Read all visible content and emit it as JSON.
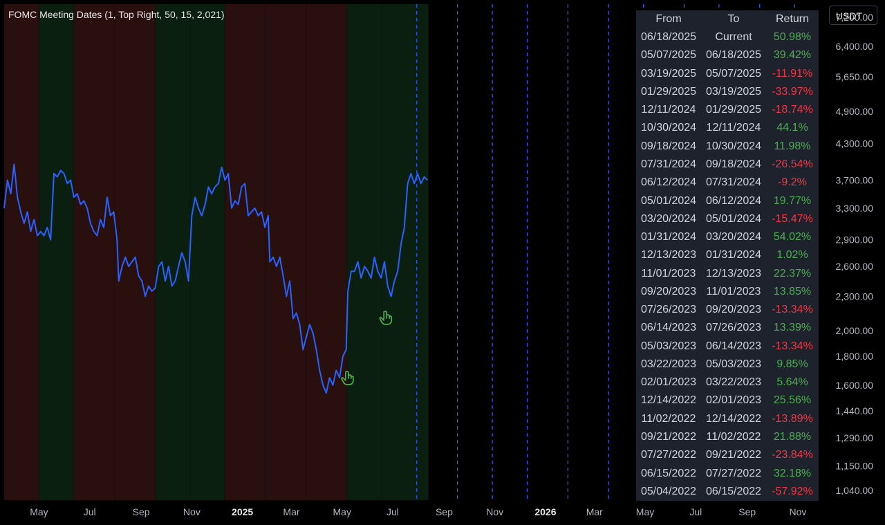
{
  "indicator": {
    "title": "FOMC Meeting Dates (1, Top Right, 50, 15, 2,021)"
  },
  "unit_button": {
    "label": "USDT"
  },
  "colors": {
    "background": "#000000",
    "price_line": "#2962ff",
    "positive_return": "#4caf50",
    "negative_return": "#f23645",
    "bull_shade": "#0b1f10",
    "bear_shade": "#2a0f0f",
    "fomc_marker": "#2962ff",
    "table_background": "#1e222d"
  },
  "table": {
    "headers": {
      "from": "From",
      "to": "To",
      "return": "Return"
    },
    "rows": [
      {
        "from": "06/18/2025",
        "to": "Current",
        "return": "50.98%"
      },
      {
        "from": "05/07/2025",
        "to": "06/18/2025",
        "return": "39.42%"
      },
      {
        "from": "03/19/2025",
        "to": "05/07/2025",
        "return": "-11.91%"
      },
      {
        "from": "01/29/2025",
        "to": "03/19/2025",
        "return": "-33.97%"
      },
      {
        "from": "12/11/2024",
        "to": "01/29/2025",
        "return": "-18.74%"
      },
      {
        "from": "10/30/2024",
        "to": "12/11/2024",
        "return": "44.1%"
      },
      {
        "from": "09/18/2024",
        "to": "10/30/2024",
        "return": "11.98%"
      },
      {
        "from": "07/31/2024",
        "to": "09/18/2024",
        "return": "-26.54%"
      },
      {
        "from": "06/12/2024",
        "to": "07/31/2024",
        "return": "-9.2%"
      },
      {
        "from": "05/01/2024",
        "to": "06/12/2024",
        "return": "19.77%"
      },
      {
        "from": "03/20/2024",
        "to": "05/01/2024",
        "return": "-15.47%"
      },
      {
        "from": "01/31/2024",
        "to": "03/20/2024",
        "return": "54.02%"
      },
      {
        "from": "12/13/2023",
        "to": "01/31/2024",
        "return": "1.02%"
      },
      {
        "from": "11/01/2023",
        "to": "12/13/2023",
        "return": "22.37%"
      },
      {
        "from": "09/20/2023",
        "to": "11/01/2023",
        "return": "13.85%"
      },
      {
        "from": "07/26/2023",
        "to": "09/20/2023",
        "return": "-13.34%"
      },
      {
        "from": "06/14/2023",
        "to": "07/26/2023",
        "return": "13.39%"
      },
      {
        "from": "05/03/2023",
        "to": "06/14/2023",
        "return": "-13.34%"
      },
      {
        "from": "03/22/2023",
        "to": "05/03/2023",
        "return": "9.85%"
      },
      {
        "from": "02/01/2023",
        "to": "03/22/2023",
        "return": "5.64%"
      },
      {
        "from": "12/14/2022",
        "to": "02/01/2023",
        "return": "25.56%"
      },
      {
        "from": "11/02/2022",
        "to": "12/14/2022",
        "return": "-13.89%"
      },
      {
        "from": "09/21/2022",
        "to": "11/02/2022",
        "return": "21.88%"
      },
      {
        "from": "07/27/2022",
        "to": "09/21/2022",
        "return": "-23.84%"
      },
      {
        "from": "06/15/2022",
        "to": "07/27/2022",
        "return": "32.18%"
      },
      {
        "from": "05/04/2022",
        "to": "06/15/2022",
        "return": "-57.92%"
      }
    ]
  },
  "chart_data": {
    "type": "line",
    "scale": "log",
    "ylim": [
      1000,
      7600
    ],
    "xlim": [
      "2024-03-20",
      "2026-12-01"
    ],
    "y_ticks": [
      "7,200.00",
      "6,400.00",
      "5,650.00",
      "4,900.00",
      "4,300.00",
      "3,700.00",
      "3,300.00",
      "2,900.00",
      "2,600.00",
      "2,300.00",
      "2,000.00",
      "1,800.00",
      "1,600.00",
      "1,440.00",
      "1,290.00",
      "1,150.00",
      "1,040.00"
    ],
    "x_ticks": [
      {
        "label": "May",
        "date": "2024-05-01",
        "bold": false
      },
      {
        "label": "Jul",
        "date": "2024-07-01",
        "bold": false
      },
      {
        "label": "Sep",
        "date": "2024-09-01",
        "bold": false
      },
      {
        "label": "Nov",
        "date": "2024-11-01",
        "bold": false
      },
      {
        "label": "2025",
        "date": "2025-01-01",
        "bold": true
      },
      {
        "label": "Mar",
        "date": "2025-03-01",
        "bold": false
      },
      {
        "label": "May",
        "date": "2025-05-01",
        "bold": false
      },
      {
        "label": "Jul",
        "date": "2025-07-01",
        "bold": false
      },
      {
        "label": "Sep",
        "date": "2025-09-01",
        "bold": false
      },
      {
        "label": "Nov",
        "date": "2025-11-01",
        "bold": false
      },
      {
        "label": "2026",
        "date": "2026-01-01",
        "bold": true
      },
      {
        "label": "Mar",
        "date": "2026-03-01",
        "bold": false
      },
      {
        "label": "May",
        "date": "2026-05-01",
        "bold": false
      },
      {
        "label": "Jul",
        "date": "2026-07-01",
        "bold": false
      },
      {
        "label": "Sep",
        "date": "2026-09-01",
        "bold": false
      },
      {
        "label": "Nov",
        "date": "2026-11-01",
        "bold": false
      }
    ],
    "regions": [
      {
        "from": "2024-03-20",
        "to": "2024-05-01",
        "trend": "bear"
      },
      {
        "from": "2024-05-01",
        "to": "2024-06-12",
        "trend": "bull"
      },
      {
        "from": "2024-06-12",
        "to": "2024-07-31",
        "trend": "bear"
      },
      {
        "from": "2024-07-31",
        "to": "2024-09-18",
        "trend": "bear"
      },
      {
        "from": "2024-09-18",
        "to": "2024-10-30",
        "trend": "bull"
      },
      {
        "from": "2024-10-30",
        "to": "2024-12-11",
        "trend": "bull"
      },
      {
        "from": "2024-12-11",
        "to": "2025-01-29",
        "trend": "bear"
      },
      {
        "from": "2025-01-29",
        "to": "2025-03-19",
        "trend": "bear"
      },
      {
        "from": "2025-03-19",
        "to": "2025-05-07",
        "trend": "bear"
      },
      {
        "from": "2025-05-07",
        "to": "2025-06-18",
        "trend": "bull"
      },
      {
        "from": "2025-06-18",
        "to": "2025-08-13",
        "trend": "bull"
      }
    ],
    "future_fomc_dates": [
      "2025-07-30",
      "2025-09-17",
      "2025-10-29",
      "2025-12-10",
      "2026-01-28",
      "2026-03-18",
      "2026-04-29",
      "2026-06-17",
      "2026-07-29",
      "2026-09-16",
      "2026-10-28"
    ],
    "markers": [
      {
        "date": "2025-05-07",
        "price": 1650
      },
      {
        "date": "2025-06-22",
        "price": 2110
      }
    ],
    "series": [
      {
        "dates": [
          "2024-03-20",
          "2024-03-24",
          "2024-03-28",
          "2024-04-01",
          "2024-04-05",
          "2024-04-09",
          "2024-04-13",
          "2024-04-17",
          "2024-04-21",
          "2024-04-25",
          "2024-04-29",
          "2024-05-03",
          "2024-05-07",
          "2024-05-11",
          "2024-05-15",
          "2024-05-19",
          "2024-05-23",
          "2024-05-27",
          "2024-05-31",
          "2024-06-04",
          "2024-06-08",
          "2024-06-12",
          "2024-06-16",
          "2024-06-20",
          "2024-06-24",
          "2024-06-28",
          "2024-07-02",
          "2024-07-06",
          "2024-07-10",
          "2024-07-14",
          "2024-07-18",
          "2024-07-22",
          "2024-07-26",
          "2024-07-30",
          "2024-08-03",
          "2024-08-05",
          "2024-08-09",
          "2024-08-13",
          "2024-08-17",
          "2024-08-21",
          "2024-08-25",
          "2024-08-29",
          "2024-09-02",
          "2024-09-06",
          "2024-09-10",
          "2024-09-14",
          "2024-09-18",
          "2024-09-22",
          "2024-09-26",
          "2024-09-30",
          "2024-10-04",
          "2024-10-08",
          "2024-10-12",
          "2024-10-16",
          "2024-10-20",
          "2024-10-24",
          "2024-10-28",
          "2024-11-01",
          "2024-11-05",
          "2024-11-09",
          "2024-11-13",
          "2024-11-17",
          "2024-11-21",
          "2024-11-25",
          "2024-11-29",
          "2024-12-03",
          "2024-12-07",
          "2024-12-11",
          "2024-12-15",
          "2024-12-19",
          "2024-12-23",
          "2024-12-27",
          "2024-12-31",
          "2025-01-04",
          "2025-01-08",
          "2025-01-12",
          "2025-01-16",
          "2025-01-20",
          "2025-01-24",
          "2025-01-28",
          "2025-02-01",
          "2025-02-03",
          "2025-02-07",
          "2025-02-11",
          "2025-02-15",
          "2025-02-19",
          "2025-02-23",
          "2025-02-27",
          "2025-03-03",
          "2025-03-07",
          "2025-03-11",
          "2025-03-15",
          "2025-03-19",
          "2025-03-23",
          "2025-03-27",
          "2025-03-31",
          "2025-04-04",
          "2025-04-08",
          "2025-04-12",
          "2025-04-16",
          "2025-04-20",
          "2025-04-24",
          "2025-04-28",
          "2025-05-02",
          "2025-05-06",
          "2025-05-08",
          "2025-05-12",
          "2025-05-16",
          "2025-05-20",
          "2025-05-24",
          "2025-05-28",
          "2025-06-01",
          "2025-06-05",
          "2025-06-09",
          "2025-06-13",
          "2025-06-17",
          "2025-06-21",
          "2025-06-25",
          "2025-06-29",
          "2025-07-03",
          "2025-07-07",
          "2025-07-11",
          "2025-07-15",
          "2025-07-19",
          "2025-07-23",
          "2025-07-27",
          "2025-07-31",
          "2025-08-04",
          "2025-08-08",
          "2025-08-12"
        ],
        "values": [
          3300,
          3700,
          3500,
          3950,
          3450,
          3250,
          3100,
          3250,
          3000,
          3150,
          2950,
          3000,
          2950,
          3050,
          2900,
          3800,
          3750,
          3850,
          3800,
          3650,
          3700,
          3450,
          3500,
          3350,
          3400,
          3300,
          3100,
          3000,
          2950,
          3150,
          3050,
          3450,
          3200,
          3250,
          2900,
          2450,
          2600,
          2700,
          2600,
          2650,
          2700,
          2500,
          2450,
          2300,
          2400,
          2350,
          2380,
          2600,
          2650,
          2450,
          2600,
          2400,
          2450,
          2600,
          2750,
          2650,
          2450,
          3200,
          3450,
          3300,
          3200,
          3350,
          3600,
          3500,
          3600,
          3650,
          3900,
          3700,
          3800,
          3300,
          3400,
          3350,
          3600,
          3650,
          3200,
          3250,
          3300,
          3200,
          3250,
          3050,
          3200,
          2650,
          2700,
          2600,
          2700,
          2500,
          2300,
          2450,
          2100,
          2150,
          2050,
          1850,
          1950,
          2050,
          1980,
          1850,
          1700,
          1600,
          1550,
          1650,
          1600,
          1700,
          1650,
          1800,
          1850,
          2350,
          2550,
          2550,
          2650,
          2480,
          2600,
          2550,
          2480,
          2700,
          2550,
          2480,
          2650,
          2400,
          2300,
          2450,
          2550,
          2850,
          3050,
          3650,
          3800,
          3650,
          3800,
          3650,
          3750,
          3700
        ]
      }
    ]
  }
}
